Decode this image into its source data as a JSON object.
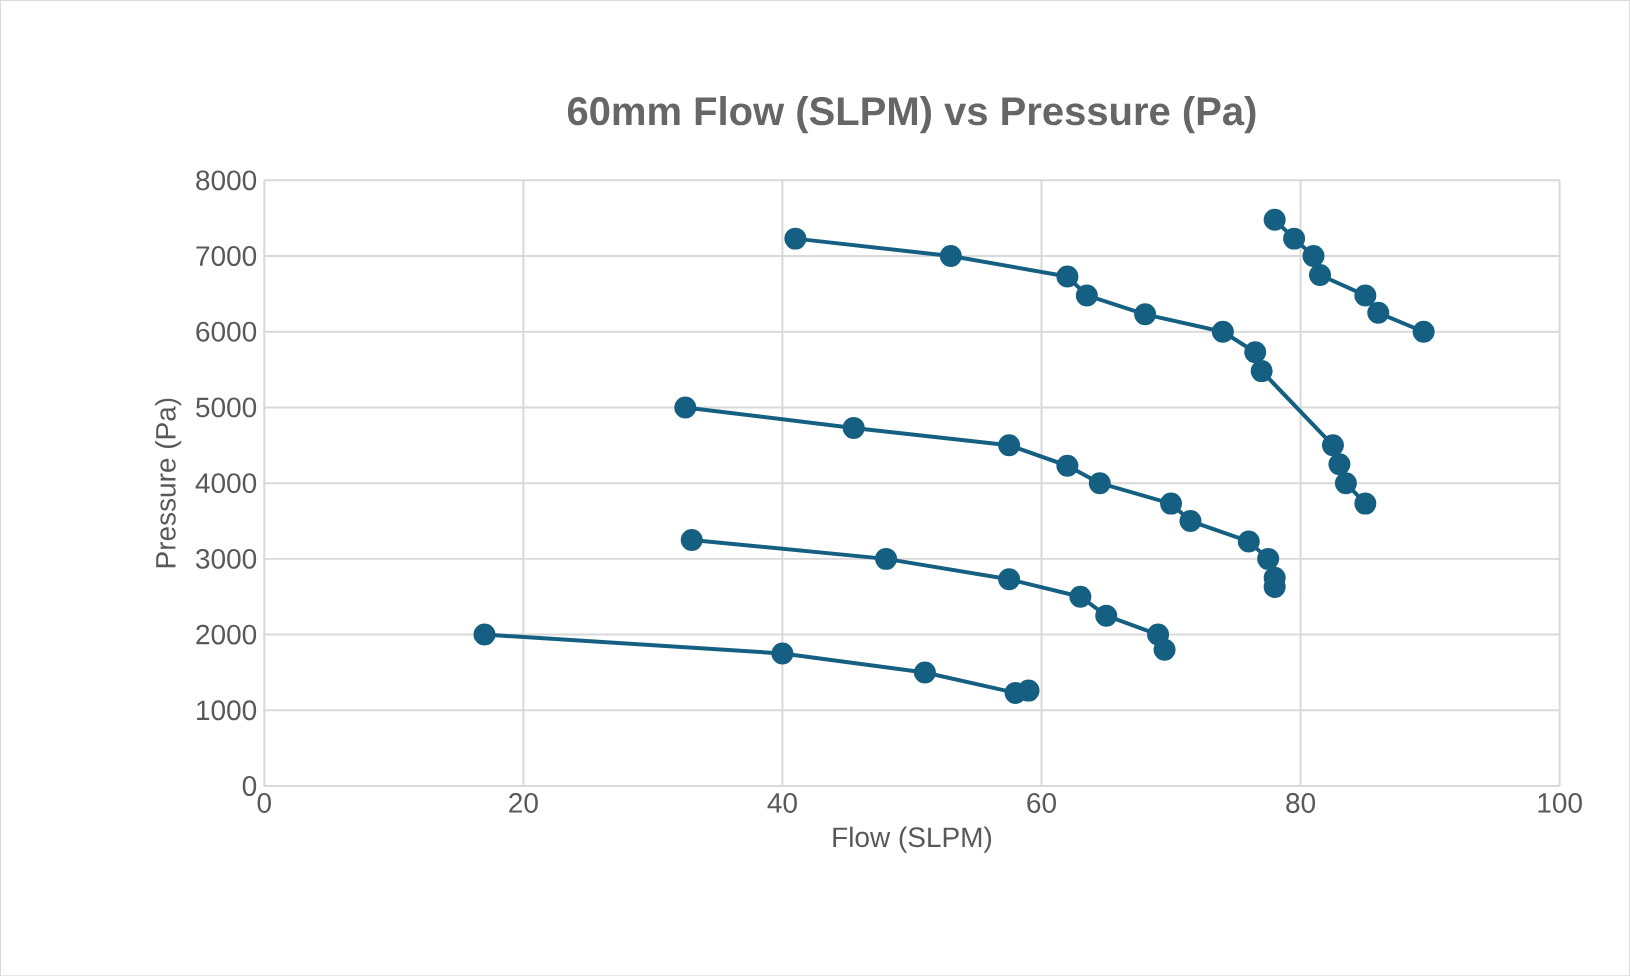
{
  "chart_data": {
    "type": "line",
    "title": "60mm Flow (SLPM) vs Pressure (Pa)",
    "xlabel": "Flow (SLPM)",
    "ylabel": "Pressure (Pa)",
    "xlim": [
      0,
      100
    ],
    "xticks": [
      0,
      20,
      40,
      60,
      80,
      100
    ],
    "ylim": [
      0,
      8000
    ],
    "yticks": [
      0,
      1000,
      2000,
      3000,
      4000,
      5000,
      6000,
      7000,
      8000
    ],
    "grid": true,
    "marker": "circle",
    "line_style": "solid",
    "series": [
      {
        "color": "#156082",
        "x": [
          17,
          40,
          51,
          58,
          59
        ],
        "values": [
          2000,
          1750,
          1500,
          1230,
          1260
        ]
      },
      {
        "color": "#156082",
        "x": [
          33,
          48,
          57.5,
          63,
          65,
          69,
          69.5
        ],
        "values": [
          3250,
          3000,
          2730,
          2500,
          2250,
          2000,
          1800
        ]
      },
      {
        "color": "#156082",
        "x": [
          32.5,
          45.5,
          57.5,
          62,
          64.5,
          70,
          71.5,
          76,
          77.5,
          78,
          78
        ],
        "values": [
          5000,
          4730,
          4500,
          4230,
          4000,
          3730,
          3500,
          3230,
          3000,
          2750,
          2630
        ]
      },
      {
        "color": "#156082",
        "x": [
          41,
          53,
          62,
          63.5,
          68,
          74,
          76.5,
          77,
          82.5,
          83,
          83.5,
          85
        ],
        "values": [
          7230,
          7000,
          6730,
          6480,
          6230,
          6000,
          5730,
          5480,
          4500,
          4250,
          4000,
          3730
        ]
      },
      {
        "color": "#156082",
        "x": [
          78,
          79.5,
          81,
          81.5,
          85,
          86,
          89.5
        ],
        "values": [
          7480,
          7230,
          7000,
          6750,
          6480,
          6250,
          6000
        ]
      }
    ]
  }
}
